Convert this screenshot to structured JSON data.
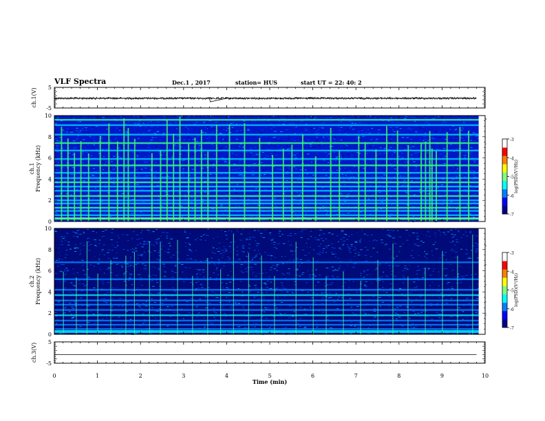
{
  "header": {
    "title": "VLF Spectra",
    "date": "Dec.1 , 2017",
    "station": "station= HUS",
    "start_ut": "start  UT =   22: 40: 2"
  },
  "colorbar": {
    "label": "log(PSD)(V²/Hz)",
    "ticks": [
      "-3",
      "-4",
      "-5",
      "-6",
      "-7"
    ],
    "colors": [
      "#000090",
      "#0000ff",
      "#0080ff",
      "#00ffff",
      "#80ff80",
      "#ffff00",
      "#ff8000",
      "#ff0000",
      "#ffffff"
    ]
  },
  "chart_data": [
    {
      "type": "line",
      "ylabel": "ch.1(V)",
      "ylim": [
        -5,
        5
      ],
      "yticks": [
        "5",
        "-5"
      ],
      "xlim": [
        0,
        10
      ],
      "x": [
        0,
        2,
        3.6,
        3.62,
        4,
        6,
        8,
        9.8
      ],
      "y": [
        -0.3,
        -0.3,
        -0.3,
        -2.0,
        -0.3,
        -0.3,
        -0.3,
        -0.3
      ]
    },
    {
      "type": "heatmap",
      "ylabel": "ch.1",
      "ylabel2": "Frequency  (kHz)",
      "ylim": [
        0,
        10
      ],
      "yticks": [
        "0",
        "2",
        "4",
        "6",
        "8",
        "10"
      ],
      "xlim": [
        0,
        10
      ],
      "zlabel": "log(PSD)(V²/Hz)",
      "zlim": [
        -7,
        -3
      ],
      "bands_khz": [
        0.25,
        0.6,
        1.0,
        1.3,
        1.7,
        2.0,
        2.4,
        2.9,
        3.3,
        3.7,
        4.1,
        4.6,
        5.3,
        5.9,
        6.7,
        7.4,
        8.2,
        9.1,
        9.6
      ],
      "bursts_min": [
        0.15,
        0.3,
        0.45,
        0.6,
        0.78,
        1.05,
        1.25,
        1.45,
        1.6,
        1.7,
        1.85,
        2.25,
        2.45,
        2.6,
        2.75,
        2.9,
        3.1,
        3.25,
        3.4,
        3.55,
        3.75,
        4.05,
        4.4,
        4.75,
        5.05,
        5.3,
        5.5,
        5.75,
        6.05,
        6.4,
        6.6,
        7.05,
        7.2,
        7.45,
        7.7,
        7.95,
        8.2,
        8.5,
        8.6,
        8.7,
        8.75,
        8.85,
        9.1,
        9.4,
        9.6
      ]
    },
    {
      "type": "heatmap",
      "ylabel": "ch.2",
      "ylabel2": "Frequency  (kHz)",
      "ylim": [
        0,
        10
      ],
      "yticks": [
        "0",
        "2",
        "4",
        "6",
        "8",
        "10"
      ],
      "xlim": [
        0,
        10
      ],
      "zlabel": "log(PSD)(V²/Hz)",
      "zlim": [
        -7,
        -3
      ],
      "bands_khz": [
        0.2,
        0.5,
        0.9,
        1.3,
        1.8,
        2.3,
        2.8,
        3.2,
        3.7,
        4.2,
        5.2,
        6.8
      ],
      "bursts_min": [
        0.2,
        0.5,
        0.75,
        1.0,
        1.3,
        1.65,
        1.85,
        2.2,
        2.45,
        2.85,
        3.2,
        3.55,
        3.85,
        4.15,
        4.5,
        4.8,
        5.1,
        5.6,
        6.0,
        6.3,
        6.7,
        7.1,
        7.5,
        7.85,
        8.2,
        8.6,
        9.0,
        9.35,
        9.7
      ]
    },
    {
      "type": "line",
      "ylabel": "ch.3(V)",
      "ylim": [
        -5,
        5
      ],
      "yticks": [
        "5",
        "-5"
      ],
      "xlim": [
        0,
        10
      ],
      "xticks": [
        "0",
        "1",
        "2",
        "3",
        "4",
        "5",
        "6",
        "7",
        "8",
        "9",
        "10"
      ],
      "xlabel": "Time  (min)",
      "x": [
        0,
        9.8
      ],
      "y": [
        -1.0,
        -1.0
      ]
    }
  ]
}
